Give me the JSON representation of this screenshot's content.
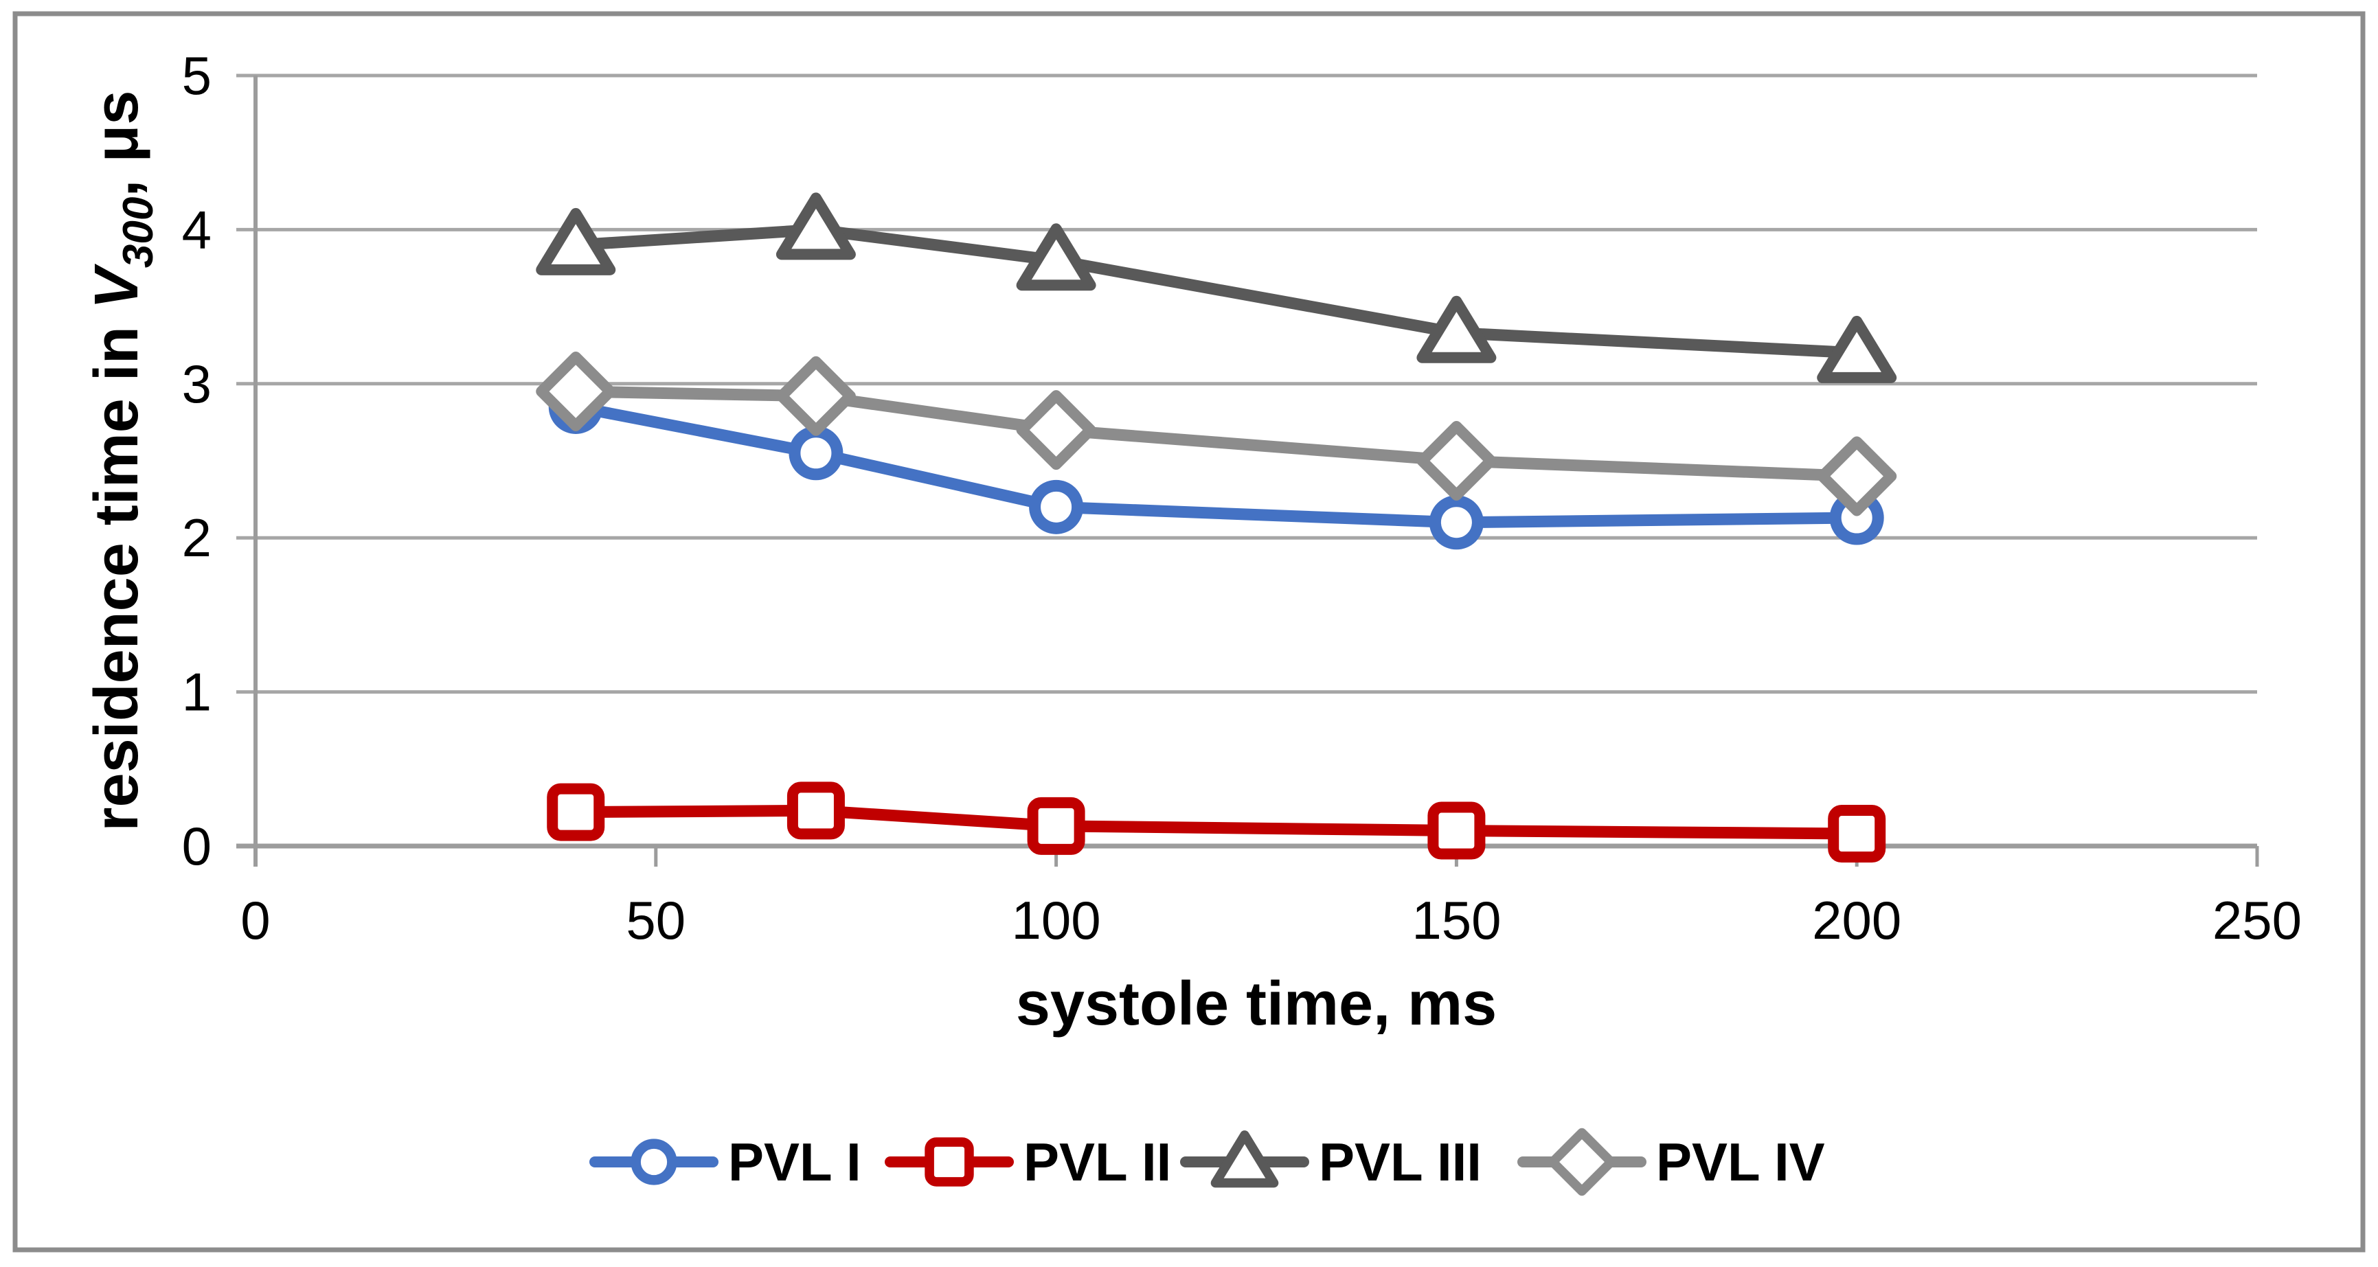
{
  "figure": {
    "background_color": "#ffffff",
    "border_color": "#8c8c8c"
  },
  "chart_data": {
    "type": "line",
    "title": "",
    "xlabel": "systole time, ms",
    "ylabel": "residence time in V300, μs",
    "ylabel_parts": {
      "prefix": "residence time in ",
      "variable": "V",
      "subscript": "300",
      "suffix": ", μs"
    },
    "x": [
      40,
      70,
      100,
      150,
      200
    ],
    "series": [
      {
        "name": "PVL I",
        "marker": "circle",
        "color": "#4472C4",
        "values": [
          2.85,
          2.55,
          2.2,
          2.1,
          2.13
        ]
      },
      {
        "name": "PVL II",
        "marker": "square",
        "color": "#C00000",
        "values": [
          0.22,
          0.23,
          0.13,
          0.1,
          0.08
        ]
      },
      {
        "name": "PVL III",
        "marker": "triangle",
        "color": "#595959",
        "values": [
          3.9,
          4.0,
          3.8,
          3.33,
          3.2
        ]
      },
      {
        "name": "PVL IV",
        "marker": "diamond",
        "color": "#8C8C8C",
        "values": [
          2.95,
          2.92,
          2.7,
          2.5,
          2.4
        ]
      }
    ],
    "xlim": [
      0,
      250
    ],
    "ylim": [
      0,
      5
    ],
    "xticks": [
      0,
      50,
      100,
      150,
      200,
      250
    ],
    "yticks": [
      0,
      1,
      2,
      3,
      4,
      5
    ],
    "grid": "horizontal",
    "legend_position": "bottom",
    "gridline_color": "#a6a6a6",
    "axis_color": "#9c9c9c",
    "text_color": "#000000",
    "marker_fill": "#ffffff"
  }
}
